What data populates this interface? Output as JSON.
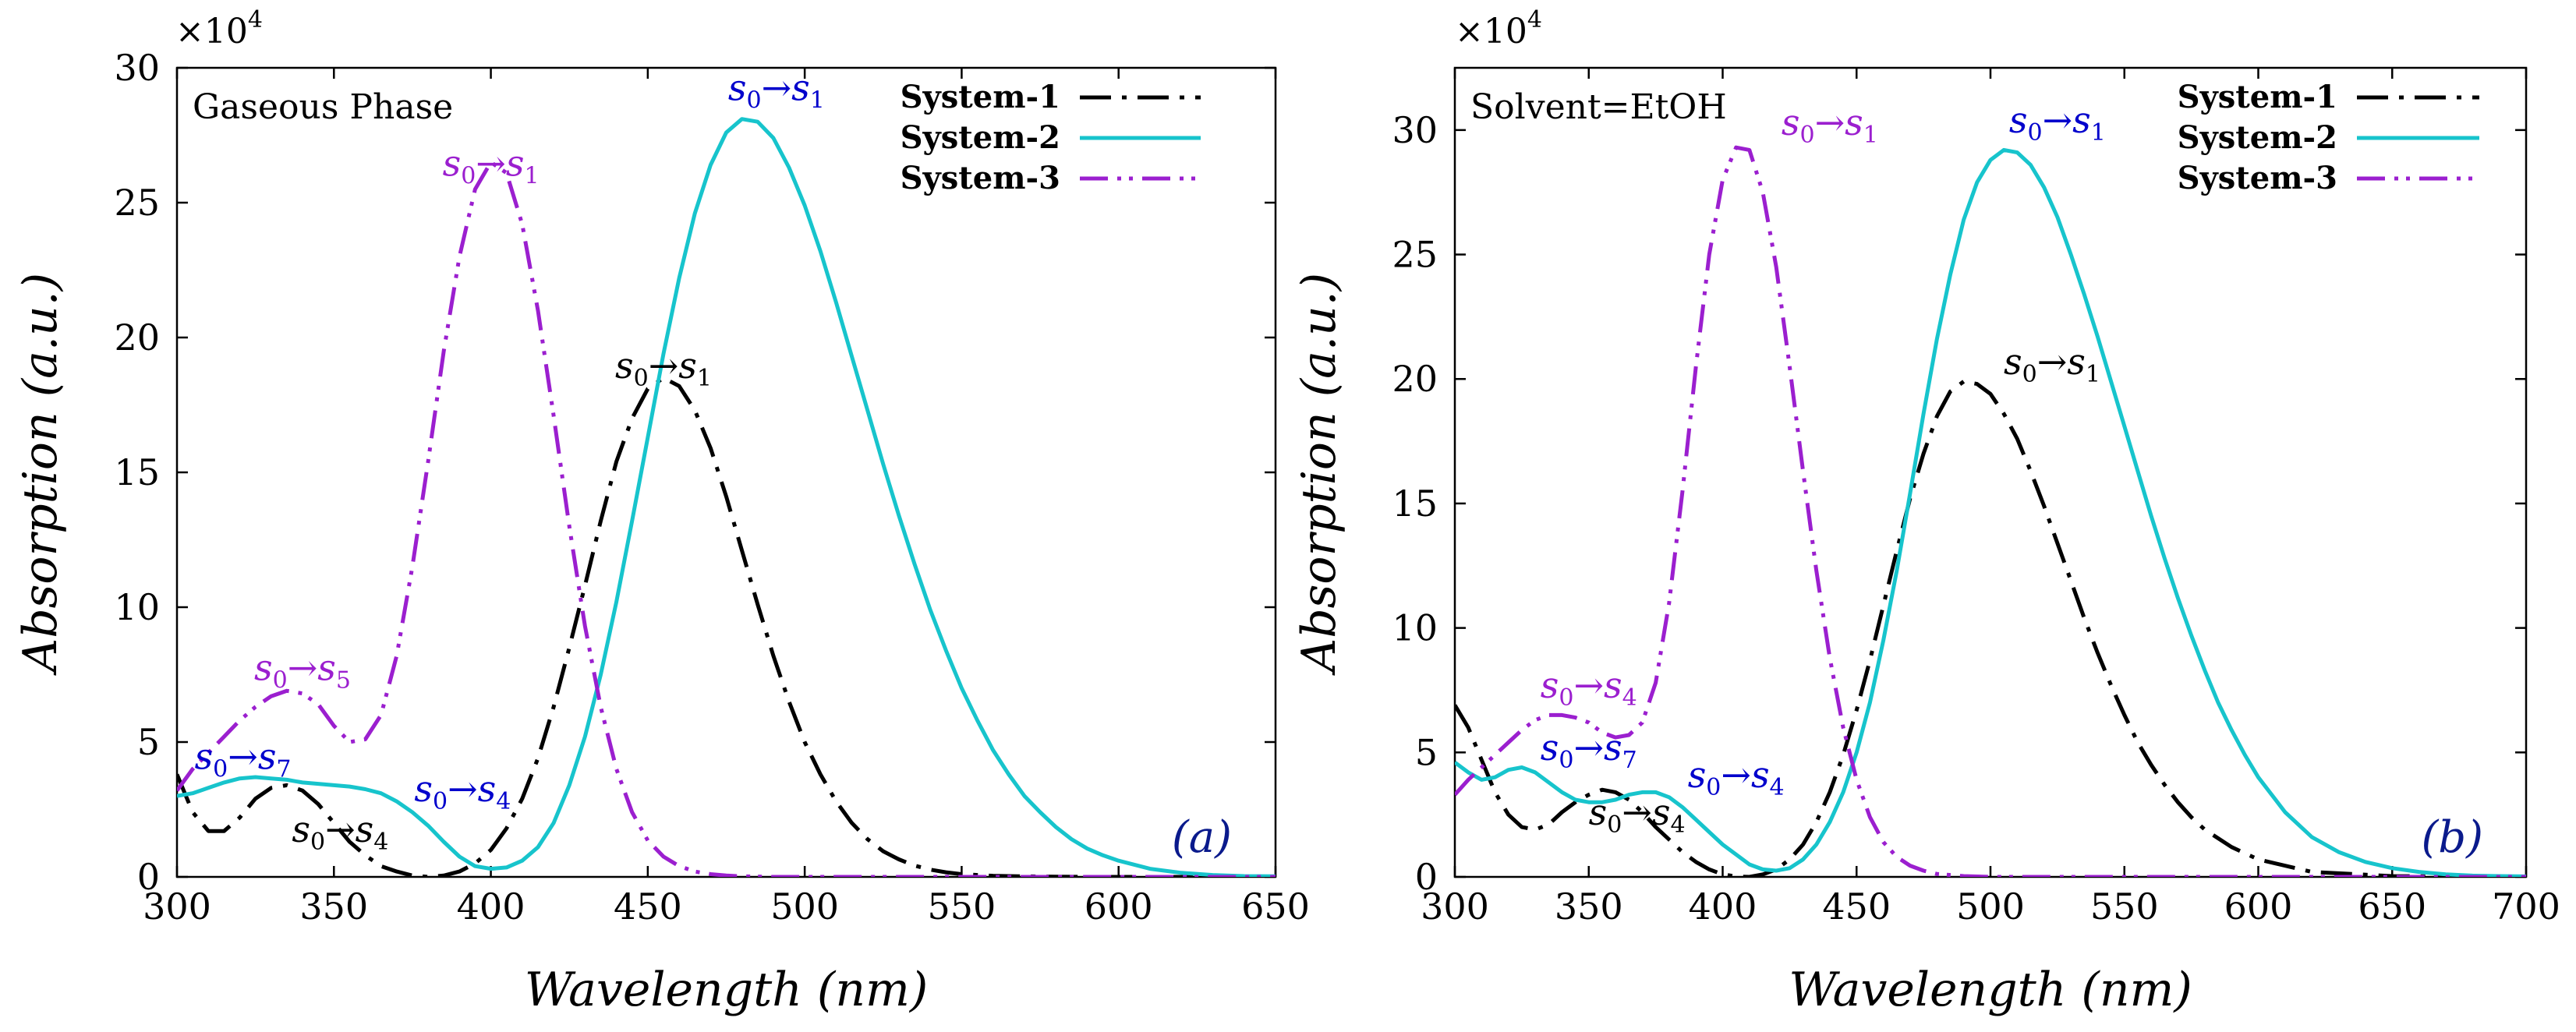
{
  "chart_data": [
    {
      "type": "line",
      "panel_tag": "(a)",
      "phase_label": "Gaseous Phase",
      "scale_label": "×10",
      "scale_exponent": "4",
      "xlabel": "Wavelength (nm)",
      "ylabel": "Absorption (a.u.)",
      "xlim": [
        300,
        650
      ],
      "ylim": [
        0,
        30
      ],
      "x_ticks": [
        300,
        350,
        400,
        450,
        500,
        550,
        600,
        650
      ],
      "x_tick_labels": [
        "300",
        "350",
        "400",
        "450",
        "500",
        "550",
        "600",
        "650"
      ],
      "y_ticks": [
        0,
        5,
        10,
        15,
        20,
        25,
        30
      ],
      "y_tick_labels": [
        "0",
        "5",
        "10",
        "15",
        "20",
        "25",
        "30"
      ],
      "legend_position": "top-right",
      "series": [
        {
          "name": "System-1",
          "color": "#000000",
          "dash": "dashdot",
          "x": [
            300,
            305,
            310,
            315,
            320,
            325,
            330,
            335,
            340,
            345,
            350,
            355,
            360,
            365,
            370,
            375,
            380,
            385,
            390,
            395,
            400,
            405,
            410,
            415,
            420,
            425,
            430,
            435,
            440,
            445,
            450,
            455,
            460,
            465,
            470,
            475,
            480,
            485,
            490,
            495,
            500,
            505,
            510,
            515,
            520,
            525,
            530,
            535,
            540,
            545,
            550,
            560,
            570,
            580,
            590,
            600,
            620,
            650
          ],
          "values": [
            3.8,
            2.4,
            1.7,
            1.7,
            2.2,
            2.9,
            3.3,
            3.4,
            3.2,
            2.7,
            2.0,
            1.3,
            0.8,
            0.4,
            0.2,
            0.05,
            0.0,
            0.05,
            0.2,
            0.5,
            1.0,
            1.8,
            2.9,
            4.4,
            6.3,
            8.5,
            10.8,
            13.2,
            15.4,
            17.0,
            18.1,
            18.5,
            18.2,
            17.3,
            15.9,
            14.1,
            12.1,
            10.1,
            8.2,
            6.5,
            5.0,
            3.8,
            2.8,
            2.0,
            1.4,
            0.95,
            0.65,
            0.42,
            0.27,
            0.17,
            0.1,
            0.04,
            0.02,
            0.01,
            0.0,
            0.0,
            0.0,
            0.0
          ]
        },
        {
          "name": "System-2",
          "color": "#17C4CC",
          "dash": "solid",
          "x": [
            300,
            305,
            310,
            315,
            320,
            325,
            330,
            335,
            340,
            345,
            350,
            355,
            360,
            365,
            370,
            375,
            380,
            385,
            390,
            395,
            400,
            405,
            410,
            415,
            420,
            425,
            430,
            435,
            440,
            445,
            450,
            455,
            460,
            465,
            470,
            475,
            480,
            485,
            490,
            495,
            500,
            505,
            510,
            515,
            520,
            525,
            530,
            535,
            540,
            545,
            550,
            555,
            560,
            565,
            570,
            575,
            580,
            585,
            590,
            595,
            600,
            610,
            620,
            630,
            640,
            650
          ],
          "values": [
            3.0,
            3.1,
            3.3,
            3.5,
            3.65,
            3.7,
            3.65,
            3.6,
            3.5,
            3.45,
            3.4,
            3.35,
            3.25,
            3.1,
            2.8,
            2.4,
            1.9,
            1.3,
            0.75,
            0.4,
            0.3,
            0.35,
            0.6,
            1.1,
            2.0,
            3.4,
            5.2,
            7.5,
            10.2,
            13.2,
            16.3,
            19.4,
            22.2,
            24.6,
            26.4,
            27.6,
            28.1,
            28.0,
            27.4,
            26.3,
            24.9,
            23.2,
            21.3,
            19.3,
            17.3,
            15.3,
            13.4,
            11.6,
            9.9,
            8.4,
            7.0,
            5.8,
            4.7,
            3.8,
            3.0,
            2.4,
            1.85,
            1.4,
            1.05,
            0.8,
            0.6,
            0.3,
            0.15,
            0.07,
            0.03,
            0.02
          ]
        },
        {
          "name": "System-3",
          "color": "#9B1FCF",
          "dash": "dashdotdot",
          "x": [
            300,
            305,
            310,
            315,
            320,
            325,
            330,
            335,
            340,
            345,
            350,
            355,
            360,
            365,
            370,
            375,
            380,
            385,
            390,
            395,
            400,
            405,
            410,
            415,
            420,
            425,
            430,
            435,
            440,
            445,
            450,
            455,
            460,
            465,
            470,
            475,
            480,
            490,
            500,
            520,
            550,
            600,
            650
          ],
          "values": [
            3.2,
            4.0,
            4.6,
            5.2,
            5.8,
            6.3,
            6.7,
            6.9,
            6.8,
            6.4,
            5.6,
            5.0,
            5.1,
            6.0,
            8.2,
            11.5,
            15.4,
            19.5,
            23.0,
            25.5,
            26.5,
            26.1,
            24.2,
            21.0,
            17.1,
            13.0,
            9.3,
            6.3,
            4.0,
            2.4,
            1.35,
            0.75,
            0.4,
            0.2,
            0.1,
            0.05,
            0.02,
            0.0,
            0.0,
            0.0,
            0.0,
            0.0,
            0.0
          ]
        }
      ],
      "annotations": [
        {
          "base": "s",
          "sub0": "0",
          "arrow": "→",
          "sub1": "1",
          "target": "s",
          "x": 491,
          "y": 28.8,
          "color": "#0000CC"
        },
        {
          "base": "s",
          "sub0": "0",
          "arrow": "→",
          "sub1": "1",
          "target": "s",
          "x": 400,
          "y": 26.0,
          "color": "#9B1FCF"
        },
        {
          "base": "s",
          "sub0": "0",
          "arrow": "→",
          "sub1": "1",
          "target": "s",
          "x": 455,
          "y": 18.5,
          "color": "#000000"
        },
        {
          "base": "s",
          "sub0": "0",
          "arrow": "→",
          "sub1": "5",
          "target": "s",
          "x": 340,
          "y": 7.3,
          "color": "#9B1FCF"
        },
        {
          "base": "s",
          "sub0": "0",
          "arrow": "→",
          "sub1": "7",
          "target": "s",
          "x": 321,
          "y": 4.0,
          "color": "#0000CC"
        },
        {
          "base": "s",
          "sub0": "0",
          "arrow": "→",
          "sub1": "4",
          "target": "s",
          "x": 391,
          "y": 2.8,
          "color": "#0000CC"
        },
        {
          "base": "s",
          "sub0": "0",
          "arrow": "→",
          "sub1": "4",
          "target": "s",
          "x": 352,
          "y": 1.3,
          "color": "#000000"
        }
      ]
    },
    {
      "type": "line",
      "panel_tag": "(b)",
      "phase_label": "Solvent=EtOH",
      "scale_label": "×10",
      "scale_exponent": "4",
      "xlabel": "Wavelength (nm)",
      "ylabel": "Absorption (a.u.)",
      "xlim": [
        300,
        700
      ],
      "ylim": [
        0,
        32.5
      ],
      "x_ticks": [
        300,
        350,
        400,
        450,
        500,
        550,
        600,
        650,
        700
      ],
      "x_tick_labels": [
        "300",
        "350",
        "400",
        "450",
        "500",
        "550",
        "600",
        "650",
        "700"
      ],
      "y_ticks": [
        0,
        5,
        10,
        15,
        20,
        25,
        30
      ],
      "y_tick_labels": [
        "0",
        "5",
        "10",
        "15",
        "20",
        "25",
        "30"
      ],
      "legend_position": "top-right",
      "series": [
        {
          "name": "System-1",
          "color": "#000000",
          "dash": "dashdot",
          "x": [
            300,
            305,
            310,
            315,
            320,
            325,
            330,
            335,
            340,
            345,
            350,
            355,
            360,
            365,
            370,
            375,
            380,
            385,
            390,
            395,
            400,
            405,
            410,
            415,
            420,
            425,
            430,
            435,
            440,
            445,
            450,
            455,
            460,
            465,
            470,
            475,
            480,
            485,
            490,
            495,
            500,
            505,
            510,
            515,
            520,
            525,
            530,
            535,
            540,
            545,
            550,
            555,
            560,
            565,
            570,
            575,
            580,
            590,
            600,
            620,
            650,
            700
          ],
          "values": [
            6.9,
            6.0,
            4.7,
            3.4,
            2.5,
            2.0,
            1.9,
            2.1,
            2.6,
            3.0,
            3.3,
            3.5,
            3.4,
            3.1,
            2.6,
            2.0,
            1.5,
            1.0,
            0.6,
            0.3,
            0.1,
            0.02,
            0.0,
            0.1,
            0.3,
            0.7,
            1.3,
            2.2,
            3.4,
            4.9,
            6.7,
            8.7,
            10.9,
            13.1,
            15.2,
            17.0,
            18.5,
            19.5,
            19.9,
            19.8,
            19.4,
            18.6,
            17.6,
            16.3,
            14.9,
            13.4,
            11.9,
            10.4,
            9.0,
            7.7,
            6.5,
            5.4,
            4.5,
            3.7,
            3.0,
            2.4,
            1.9,
            1.2,
            0.7,
            0.2,
            0.03,
            0.0
          ]
        },
        {
          "name": "System-2",
          "color": "#17C4CC",
          "dash": "solid",
          "x": [
            300,
            305,
            310,
            315,
            320,
            325,
            330,
            335,
            340,
            345,
            350,
            355,
            360,
            365,
            370,
            375,
            380,
            385,
            390,
            395,
            400,
            405,
            410,
            415,
            420,
            425,
            430,
            435,
            440,
            445,
            450,
            455,
            460,
            465,
            470,
            475,
            480,
            485,
            490,
            495,
            500,
            505,
            510,
            515,
            520,
            525,
            530,
            535,
            540,
            545,
            550,
            555,
            560,
            565,
            570,
            575,
            580,
            585,
            590,
            595,
            600,
            610,
            620,
            630,
            640,
            650,
            660,
            670,
            680,
            690,
            700
          ],
          "values": [
            4.6,
            4.2,
            3.9,
            4.0,
            4.3,
            4.4,
            4.2,
            3.8,
            3.4,
            3.1,
            3.0,
            3.0,
            3.1,
            3.3,
            3.4,
            3.4,
            3.2,
            2.8,
            2.3,
            1.8,
            1.3,
            0.9,
            0.5,
            0.3,
            0.25,
            0.35,
            0.7,
            1.3,
            2.2,
            3.4,
            5.0,
            7.0,
            9.5,
            12.3,
            15.4,
            18.6,
            21.6,
            24.2,
            26.4,
            27.9,
            28.8,
            29.2,
            29.1,
            28.6,
            27.7,
            26.5,
            25.0,
            23.4,
            21.7,
            19.9,
            18.1,
            16.3,
            14.5,
            12.8,
            11.2,
            9.7,
            8.3,
            7.0,
            5.9,
            4.9,
            4.0,
            2.6,
            1.6,
            1.0,
            0.6,
            0.35,
            0.2,
            0.1,
            0.05,
            0.03,
            0.02
          ]
        },
        {
          "name": "System-3",
          "color": "#9B1FCF",
          "dash": "dashdotdot",
          "x": [
            300,
            305,
            310,
            315,
            320,
            325,
            330,
            335,
            340,
            345,
            350,
            355,
            360,
            365,
            370,
            375,
            380,
            385,
            390,
            395,
            400,
            405,
            410,
            415,
            420,
            425,
            430,
            435,
            440,
            445,
            450,
            455,
            460,
            465,
            470,
            475,
            480,
            490,
            500,
            550,
            600,
            700
          ],
          "values": [
            3.3,
            3.9,
            4.4,
            4.9,
            5.4,
            5.9,
            6.3,
            6.5,
            6.5,
            6.4,
            6.2,
            5.8,
            5.6,
            5.7,
            6.2,
            7.8,
            11.0,
            15.5,
            20.5,
            25.0,
            28.0,
            29.3,
            29.2,
            27.5,
            24.5,
            20.5,
            16.3,
            12.3,
            8.8,
            6.0,
            3.9,
            2.4,
            1.4,
            0.8,
            0.45,
            0.25,
            0.12,
            0.03,
            0.0,
            0.0,
            0.0,
            0.0
          ]
        }
      ],
      "annotations": [
        {
          "base": "s",
          "sub0": "0",
          "arrow": "→",
          "sub1": "1",
          "target": "s",
          "x": 525,
          "y": 29.9,
          "color": "#0000CC"
        },
        {
          "base": "s",
          "sub0": "0",
          "arrow": "→",
          "sub1": "1",
          "target": "s",
          "x": 440,
          "y": 29.8,
          "color": "#9B1FCF"
        },
        {
          "base": "s",
          "sub0": "0",
          "arrow": "→",
          "sub1": "1",
          "target": "s",
          "x": 523,
          "y": 20.2,
          "color": "#000000"
        },
        {
          "base": "s",
          "sub0": "0",
          "arrow": "→",
          "sub1": "4",
          "target": "s",
          "x": 350,
          "y": 7.2,
          "color": "#9B1FCF"
        },
        {
          "base": "s",
          "sub0": "0",
          "arrow": "→",
          "sub1": "7",
          "target": "s",
          "x": 350,
          "y": 4.7,
          "color": "#0000CC"
        },
        {
          "base": "s",
          "sub0": "0",
          "arrow": "→",
          "sub1": "4",
          "target": "s",
          "x": 405,
          "y": 3.6,
          "color": "#0000CC"
        },
        {
          "base": "s",
          "sub0": "0",
          "arrow": "→",
          "sub1": "4",
          "target": "s",
          "x": 368,
          "y": 2.1,
          "color": "#000000"
        }
      ]
    }
  ]
}
